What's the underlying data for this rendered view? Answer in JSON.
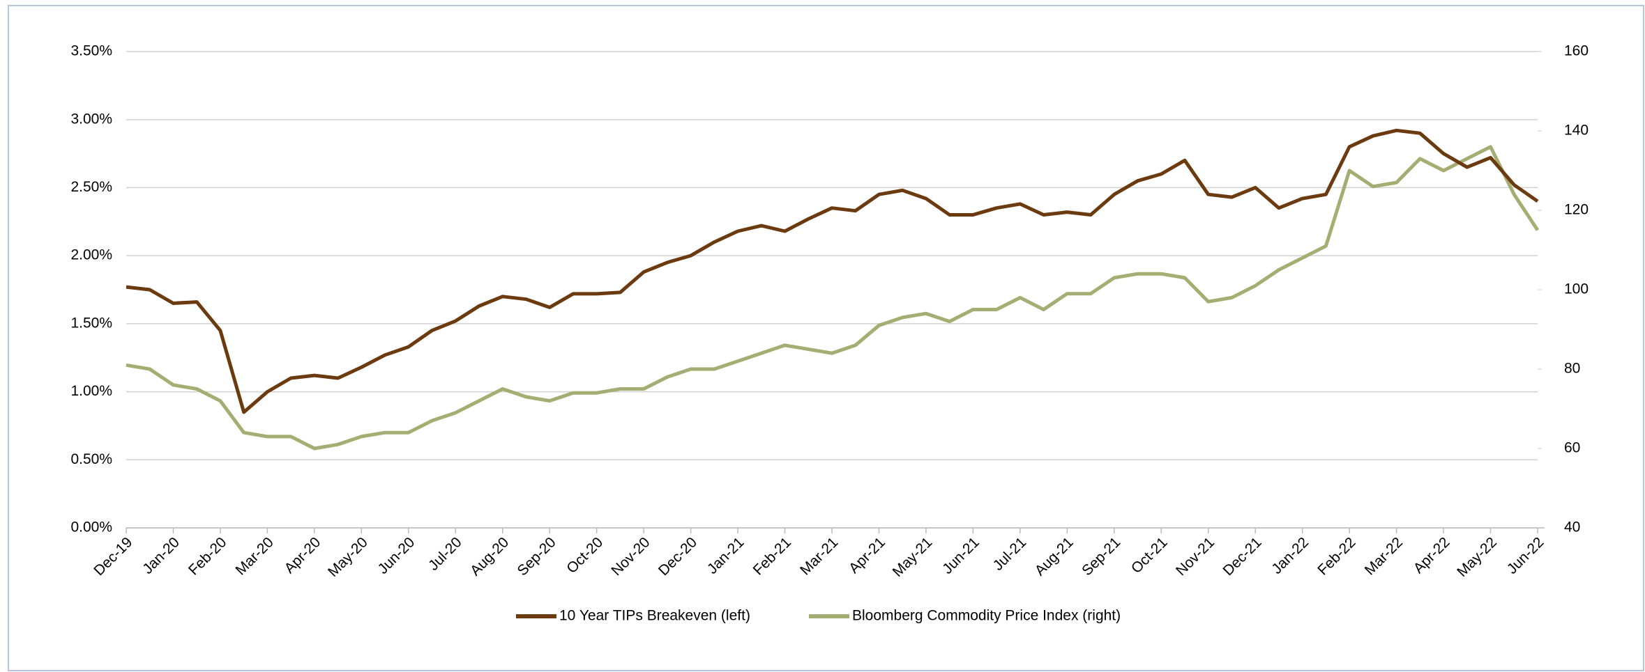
{
  "chart_data": {
    "type": "line",
    "categories": [
      "Dec-19",
      null,
      "Jan-20",
      null,
      "Feb-20",
      null,
      "Mar-20",
      null,
      "Apr-20",
      null,
      "May-20",
      null,
      "Jun-20",
      null,
      "Jul-20",
      null,
      "Aug-20",
      null,
      "Sep-20",
      null,
      "Oct-20",
      null,
      "Nov-20",
      null,
      "Dec-20",
      null,
      "Jan-21",
      null,
      "Feb-21",
      null,
      "Mar-21",
      null,
      "Apr-21",
      null,
      "May-21",
      null,
      "Jun-21",
      null,
      "Jul-21",
      null,
      "Aug-21",
      null,
      "Sep-21",
      null,
      "Oct-21",
      null,
      "Nov-21",
      null,
      "Dec-21",
      null,
      "Jan-22",
      null,
      "Feb-22",
      null,
      "Mar-22",
      null,
      "Apr-22",
      null,
      "May-22",
      null,
      "Jun-22"
    ],
    "series": [
      {
        "name": "10 Year TIPs Breakeven (left)",
        "color": "#6b3a0f",
        "axis": "y",
        "values": [
          1.77,
          1.75,
          1.65,
          1.66,
          1.45,
          0.85,
          1.0,
          1.1,
          1.12,
          1.1,
          1.18,
          1.27,
          1.33,
          1.45,
          1.52,
          1.63,
          1.7,
          1.68,
          1.62,
          1.72,
          1.72,
          1.73,
          1.88,
          1.95,
          2.0,
          2.1,
          2.18,
          2.22,
          2.18,
          2.27,
          2.35,
          2.33,
          2.45,
          2.48,
          2.42,
          2.3,
          2.3,
          2.35,
          2.38,
          2.3,
          2.32,
          2.3,
          2.45,
          2.55,
          2.6,
          2.7,
          2.45,
          2.43,
          2.5,
          2.35,
          2.42,
          2.45,
          2.8,
          2.88,
          2.92,
          2.9,
          2.75,
          2.65,
          2.72,
          2.52,
          2.4
        ]
      },
      {
        "name": "Bloomberg Commodity Price Index (right)",
        "color": "#a5ad72",
        "axis": "y2",
        "values": [
          81,
          80,
          76,
          75,
          72,
          64,
          63,
          63,
          60,
          61,
          63,
          64,
          64,
          67,
          69,
          72,
          75,
          73,
          72,
          74,
          74,
          75,
          75,
          78,
          80,
          80,
          82,
          84,
          86,
          85,
          84,
          86,
          91,
          93,
          94,
          92,
          95,
          95,
          98,
          95,
          99,
          99,
          103,
          104,
          104,
          103,
          97,
          98,
          101,
          105,
          108,
          111,
          130,
          126,
          127,
          133,
          130,
          133,
          136,
          124,
          115
        ]
      }
    ],
    "ylim": [
      0,
      0.035
    ],
    "yticks": [
      {
        "value": 0,
        "label": "0.00%"
      },
      {
        "value": 0.5,
        "label": "0.50%"
      },
      {
        "value": 1,
        "label": "1.00%"
      },
      {
        "value": 1.5,
        "label": "1.50%"
      },
      {
        "value": 2,
        "label": "2.00%"
      },
      {
        "value": 2.5,
        "label": "2.50%"
      },
      {
        "value": 3,
        "label": "3.00%"
      },
      {
        "value": 3.5,
        "label": "3.50%"
      }
    ],
    "y2lim": [
      40,
      160
    ],
    "y2ticks": [
      40,
      60,
      80,
      100,
      120,
      140,
      160
    ],
    "grid": true,
    "legend": "bottom"
  }
}
